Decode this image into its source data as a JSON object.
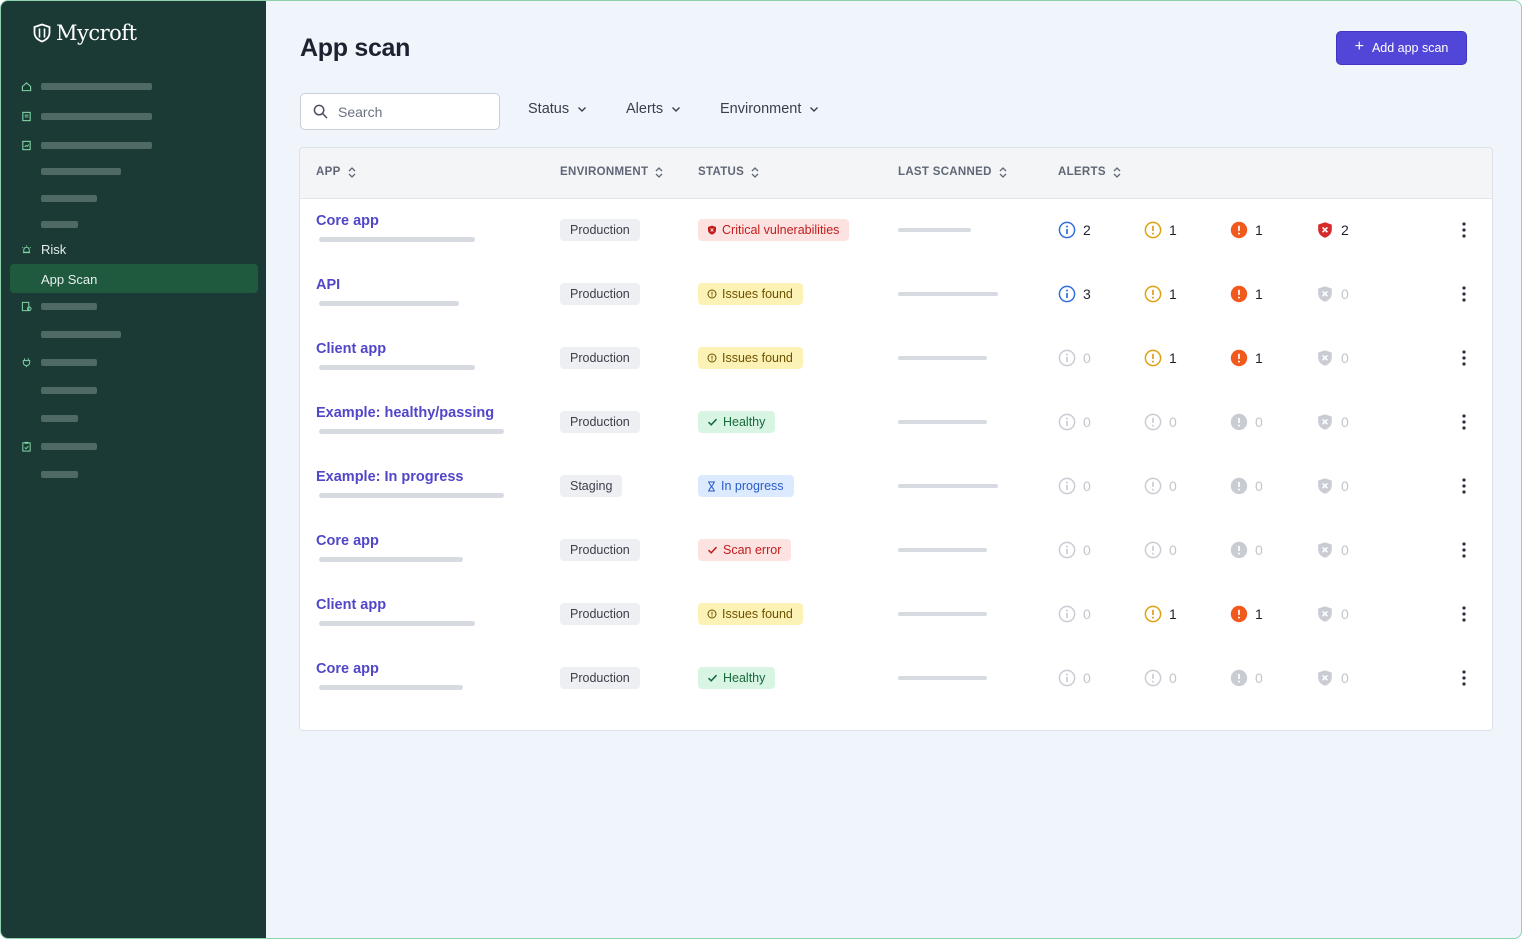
{
  "brand": {
    "name": "Mycroft"
  },
  "sidebar": {
    "risk_label": "Risk",
    "active_label": "App Scan"
  },
  "page": {
    "title": "App scan",
    "add_button_label": "Add app scan"
  },
  "search": {
    "placeholder": "Search"
  },
  "filters": [
    {
      "label": "Status"
    },
    {
      "label": "Alerts"
    },
    {
      "label": "Environment"
    }
  ],
  "table": {
    "columns": [
      {
        "label": "APP"
      },
      {
        "label": "ENVIRONMENT"
      },
      {
        "label": "STATUS"
      },
      {
        "label": "LAST SCANNED"
      },
      {
        "label": "ALERTS"
      }
    ],
    "rows": [
      {
        "app": "Core app",
        "environment": "Production",
        "status": "Critical vulnerabilities",
        "status_kind": "critical",
        "alerts": {
          "info": "2",
          "warning": "1",
          "error": "1",
          "critical": "2"
        }
      },
      {
        "app": "API",
        "environment": "Production",
        "status": "Issues found",
        "status_kind": "issues",
        "alerts": {
          "info": "3",
          "warning": "1",
          "error": "1",
          "critical": "0"
        }
      },
      {
        "app": "Client app",
        "environment": "Production",
        "status": "Issues found",
        "status_kind": "issues",
        "alerts": {
          "info": "0",
          "warning": "1",
          "error": "1",
          "critical": "0"
        }
      },
      {
        "app": "Example: healthy/passing",
        "environment": "Production",
        "status": "Healthy",
        "status_kind": "healthy",
        "alerts": {
          "info": "0",
          "warning": "0",
          "error": "0",
          "critical": "0"
        }
      },
      {
        "app": "Example: In progress",
        "environment": "Staging",
        "status": "In progress",
        "status_kind": "progress",
        "alerts": {
          "info": "0",
          "warning": "0",
          "error": "0",
          "critical": "0"
        }
      },
      {
        "app": "Core app",
        "environment": "Production",
        "status": "Scan error",
        "status_kind": "error",
        "alerts": {
          "info": "0",
          "warning": "0",
          "error": "0",
          "critical": "0"
        }
      },
      {
        "app": "Client app",
        "environment": "Production",
        "status": "Issues found",
        "status_kind": "issues",
        "alerts": {
          "info": "0",
          "warning": "1",
          "error": "1",
          "critical": "0"
        }
      },
      {
        "app": "Core app",
        "environment": "Production",
        "status": "Healthy",
        "status_kind": "healthy",
        "alerts": {
          "info": "0",
          "warning": "0",
          "error": "0",
          "critical": "0"
        }
      }
    ]
  },
  "colors": {
    "sidebar_bg": "#1b3a35",
    "accent": "#5146d8",
    "info": "#2f6fdb",
    "warning": "#e0a010",
    "error": "#f25a1d",
    "critical": "#d62b2b",
    "muted": "#c9ccd3"
  }
}
